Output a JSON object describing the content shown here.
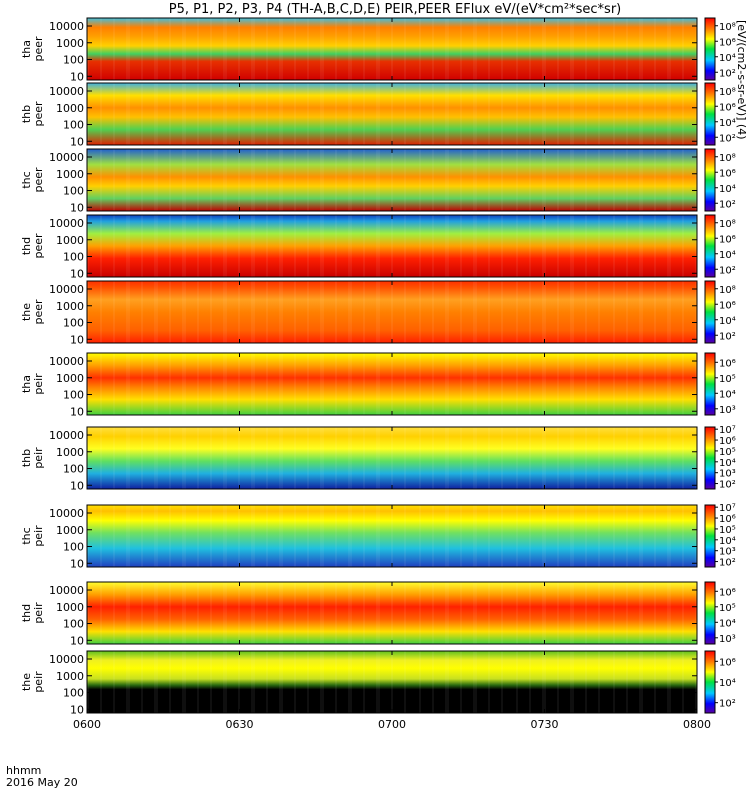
{
  "chart_data": {
    "type": "heatmap",
    "title": "P5, P1, P2, P3, P4 (TH-A,B,C,D,E) PEIR,PEER EFlux eV/(eV*cm²*sec*sr)",
    "colorbar_label": "[eV/(cm2-s-sr-eV)] (4)",
    "x_axis": {
      "ticks": [
        "0600",
        "0630",
        "0700",
        "0730",
        "0800"
      ],
      "tick_values_min": [
        0,
        30,
        60,
        90,
        120
      ],
      "range_min": [
        0,
        120
      ],
      "corner_label_1": "hhmm",
      "corner_label_2": "2016 May 20"
    },
    "y_axis": {
      "scale": "log",
      "ticks": [
        "10",
        "100",
        "1000",
        "10000"
      ],
      "tick_values": [
        10,
        100,
        1000,
        10000
      ],
      "range": [
        6,
        30000
      ]
    },
    "panels": [
      {
        "label1": "tha",
        "label2": "peer",
        "cbar_ticks": [
          "10²",
          "10⁴",
          "10⁶",
          "10⁸"
        ],
        "cbar_exp": [
          2,
          4,
          6,
          8
        ],
        "cbar_range": [
          1,
          9
        ]
      },
      {
        "label1": "thb",
        "label2": "peer",
        "cbar_ticks": [
          "10²",
          "10⁴",
          "10⁶",
          "10⁸"
        ],
        "cbar_exp": [
          2,
          4,
          6,
          8
        ],
        "cbar_range": [
          1,
          9
        ]
      },
      {
        "label1": "thc",
        "label2": "peer",
        "cbar_ticks": [
          "10²",
          "10⁴",
          "10⁶",
          "10⁸"
        ],
        "cbar_exp": [
          2,
          4,
          6,
          8
        ],
        "cbar_range": [
          1,
          9
        ]
      },
      {
        "label1": "thd",
        "label2": "peer",
        "cbar_ticks": [
          "10²",
          "10⁴",
          "10⁶",
          "10⁸"
        ],
        "cbar_exp": [
          2,
          4,
          6,
          8
        ],
        "cbar_range": [
          1,
          9
        ]
      },
      {
        "label1": "the",
        "label2": "peer",
        "cbar_ticks": [
          "10²",
          "10⁴",
          "10⁶",
          "10⁸"
        ],
        "cbar_exp": [
          2,
          4,
          6,
          8
        ],
        "cbar_range": [
          1,
          9
        ]
      },
      {
        "label1": "tha",
        "label2": "peir",
        "cbar_ticks": [
          "10³",
          "10⁴",
          "10⁵",
          "10⁶"
        ],
        "cbar_exp": [
          3,
          4,
          5,
          6
        ],
        "cbar_range": [
          2.6,
          6.6
        ]
      },
      {
        "label1": "thb",
        "label2": "peir",
        "cbar_ticks": [
          "10²",
          "10³",
          "10⁴",
          "10⁵",
          "10⁶",
          "10⁷"
        ],
        "cbar_exp": [
          2,
          3,
          4,
          5,
          6,
          7
        ],
        "cbar_range": [
          1.5,
          7.2
        ]
      },
      {
        "label1": "thc",
        "label2": "peir",
        "cbar_ticks": [
          "10²",
          "10³",
          "10⁴",
          "10⁵",
          "10⁶",
          "10⁷"
        ],
        "cbar_exp": [
          2,
          3,
          4,
          5,
          6,
          7
        ],
        "cbar_range": [
          1.5,
          7.2
        ]
      },
      {
        "label1": "thd",
        "label2": "peir",
        "cbar_ticks": [
          "10³",
          "10⁴",
          "10⁵",
          "10⁶"
        ],
        "cbar_exp": [
          3,
          4,
          5,
          6
        ],
        "cbar_range": [
          2.6,
          6.6
        ]
      },
      {
        "label1": "the",
        "label2": "peir",
        "cbar_ticks": [
          "10²",
          "10⁴",
          "10⁶"
        ],
        "cbar_exp": [
          2,
          4,
          6
        ],
        "cbar_range": [
          1,
          7
        ]
      }
    ]
  }
}
